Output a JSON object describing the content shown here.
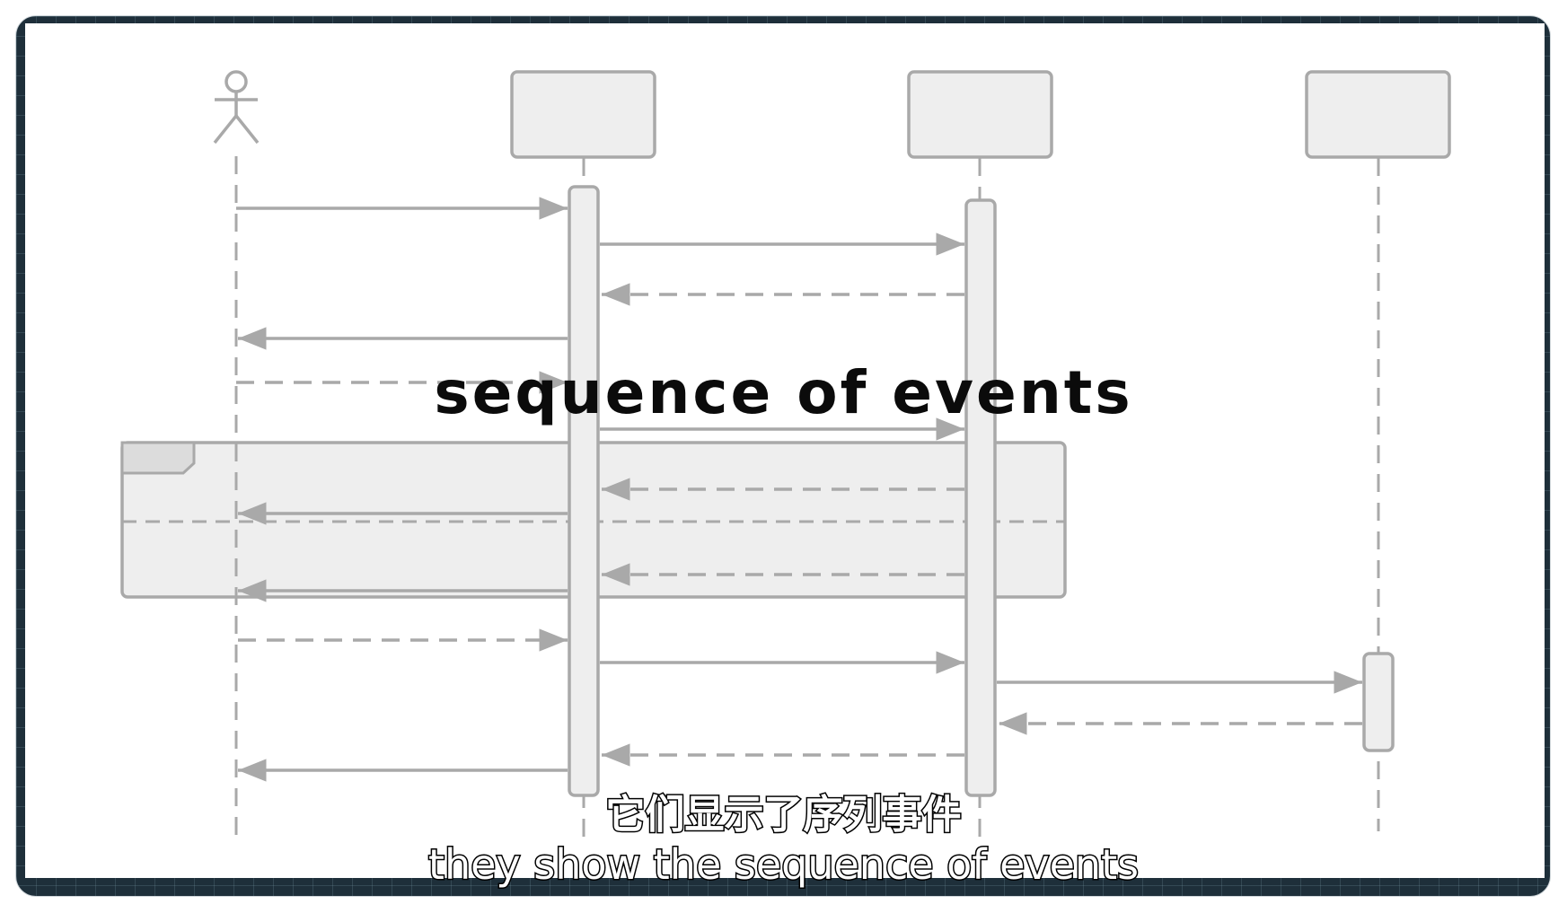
{
  "overlay": {
    "title": "sequence of events"
  },
  "subtitles": {
    "chinese": "它们显示了序列事件",
    "english": "they show the sequence of events"
  },
  "diagram": {
    "participants": [
      {
        "kind": "actor",
        "icon": "stick-figure-icon"
      },
      {
        "kind": "object-box"
      },
      {
        "kind": "object-box"
      },
      {
        "kind": "object-box"
      }
    ],
    "message_count": 16,
    "fragment_count": 1
  },
  "colors": {
    "line": "#a9a9a9",
    "fill": "#eeeeee",
    "frame": "#1e2f3a",
    "title": "#0b0b0b",
    "subtitle_fill": "#ffffff",
    "subtitle_stroke": "#000000"
  }
}
